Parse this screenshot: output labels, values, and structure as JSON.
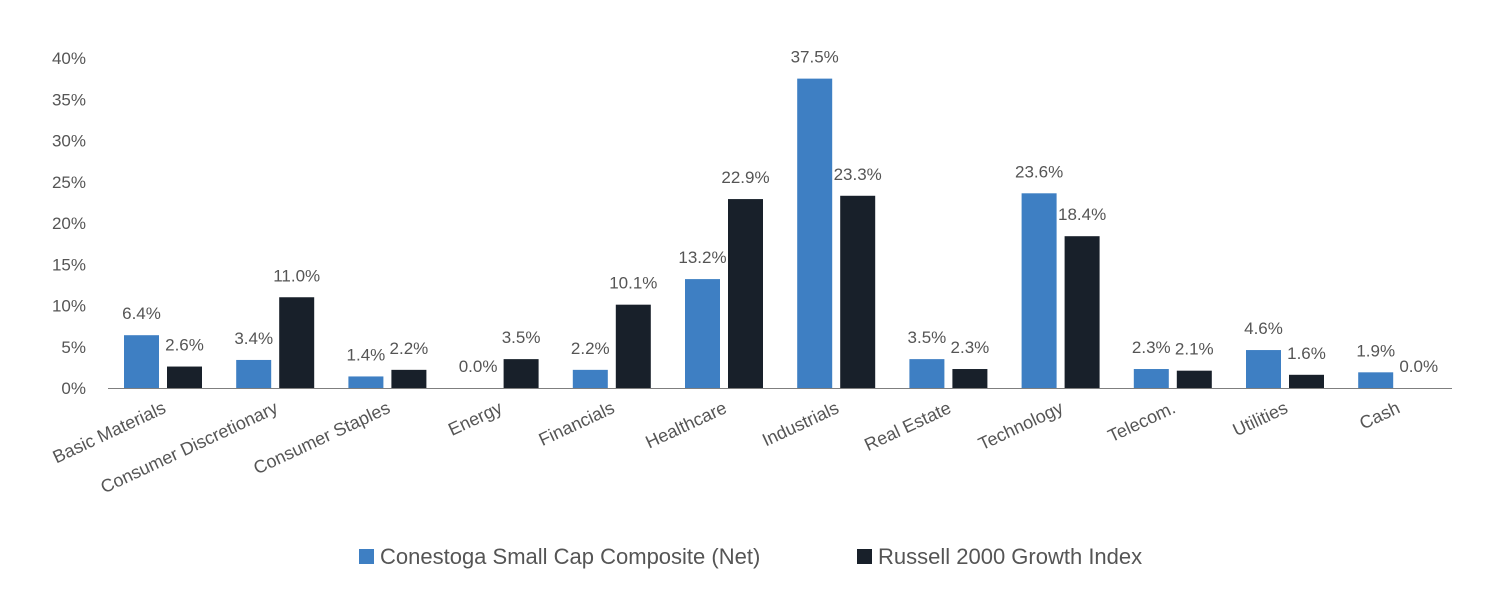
{
  "chart_data": {
    "type": "bar",
    "title": "",
    "xlabel": "",
    "ylabel": "",
    "ylim": [
      0,
      40
    ],
    "yticks": [
      0,
      5,
      10,
      15,
      20,
      25,
      30,
      35,
      40
    ],
    "ytick_labels": [
      "0%",
      "5%",
      "10%",
      "15%",
      "20%",
      "25%",
      "30%",
      "35%",
      "40%"
    ],
    "grid": false,
    "legend_position": "bottom-center",
    "categories": [
      "Basic Materials",
      "Consumer Discretionary",
      "Consumer Staples",
      "Energy",
      "Financials",
      "Healthcare",
      "Industrials",
      "Real Estate",
      "Technology",
      "Telecom.",
      "Utilities",
      "Cash"
    ],
    "series": [
      {
        "name": "Conestoga Small Cap Composite (Net)",
        "color": "#3e7fc3",
        "values": [
          6.4,
          3.4,
          1.4,
          0.0,
          2.2,
          13.2,
          37.5,
          3.5,
          23.6,
          2.3,
          4.6,
          1.9
        ],
        "labels": [
          "6.4%",
          "3.4%",
          "1.4%",
          "0.0%",
          "2.2%",
          "13.2%",
          "37.5%",
          "3.5%",
          "23.6%",
          "2.3%",
          "4.6%",
          "1.9%"
        ]
      },
      {
        "name": "Russell 2000 Growth Index",
        "color": "#18202a",
        "values": [
          2.6,
          11.0,
          2.2,
          3.5,
          10.1,
          22.9,
          23.3,
          2.3,
          18.4,
          2.1,
          1.6,
          0.0
        ],
        "labels": [
          "2.6%",
          "11.0%",
          "2.2%",
          "3.5%",
          "10.1%",
          "22.9%",
          "23.3%",
          "2.3%",
          "18.4%",
          "2.1%",
          "1.6%",
          "0.0%"
        ]
      }
    ],
    "axis_color": "#7f7f7f"
  }
}
